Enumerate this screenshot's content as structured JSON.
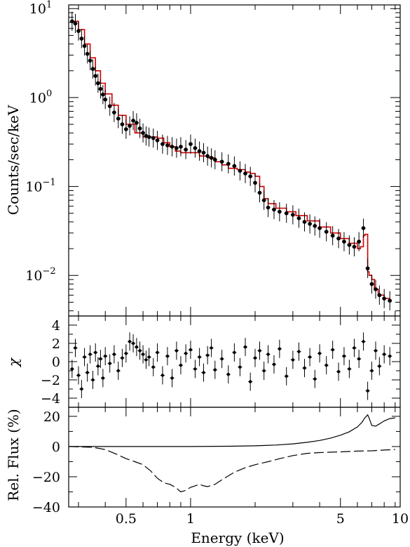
{
  "chart_data": [
    {
      "panel": "spectrum",
      "type": "scatter",
      "ylabel": "Counts/sec/keV",
      "xscale": "log",
      "yscale": "log",
      "xlim": [
        0.27,
        9.5
      ],
      "ylim": [
        0.0035,
        11
      ],
      "y_ticks": [
        {
          "base": "10",
          "exp": "1",
          "value": 10
        },
        {
          "base": "10",
          "exp": "0",
          "value": 1
        },
        {
          "base": "10",
          "exp": "−1",
          "value": 0.1
        },
        {
          "base": "10",
          "exp": "−2",
          "value": 0.01
        }
      ],
      "series": [
        {
          "role": "data",
          "color": "#000000",
          "x": [
            0.28,
            0.29,
            0.3,
            0.31,
            0.32,
            0.33,
            0.34,
            0.35,
            0.36,
            0.37,
            0.38,
            0.39,
            0.4,
            0.42,
            0.44,
            0.46,
            0.48,
            0.5,
            0.52,
            0.54,
            0.56,
            0.58,
            0.6,
            0.62,
            0.64,
            0.67,
            0.7,
            0.74,
            0.78,
            0.82,
            0.86,
            0.9,
            0.95,
            1.0,
            1.05,
            1.1,
            1.15,
            1.2,
            1.25,
            1.3,
            1.4,
            1.5,
            1.6,
            1.7,
            1.8,
            1.9,
            2.0,
            2.1,
            2.2,
            2.3,
            2.45,
            2.6,
            2.8,
            3.0,
            3.2,
            3.4,
            3.6,
            3.8,
            4.0,
            4.3,
            4.6,
            4.9,
            5.2,
            5.5,
            5.8,
            6.1,
            6.4,
            6.7,
            7.0,
            7.3,
            7.6,
            8.0,
            8.5
          ],
          "y": [
            7.2,
            6.8,
            5.6,
            4.6,
            3.8,
            3.1,
            2.6,
            2.1,
            1.75,
            1.45,
            1.25,
            1.08,
            0.95,
            0.8,
            0.68,
            0.58,
            0.5,
            0.44,
            0.48,
            0.55,
            0.52,
            0.45,
            0.4,
            0.37,
            0.36,
            0.35,
            0.33,
            0.3,
            0.29,
            0.28,
            0.27,
            0.28,
            0.26,
            0.3,
            0.27,
            0.25,
            0.24,
            0.22,
            0.21,
            0.2,
            0.19,
            0.18,
            0.17,
            0.15,
            0.14,
            0.13,
            0.11,
            0.085,
            0.07,
            0.058,
            0.055,
            0.052,
            0.05,
            0.048,
            0.044,
            0.04,
            0.038,
            0.036,
            0.034,
            0.031,
            0.028,
            0.026,
            0.024,
            0.022,
            0.021,
            0.024,
            0.034,
            0.012,
            0.008,
            0.007,
            0.006,
            0.0055,
            0.0052
          ]
        },
        {
          "role": "model",
          "color": "#cc0000",
          "x": [
            0.28,
            0.3,
            0.32,
            0.34,
            0.36,
            0.38,
            0.4,
            0.43,
            0.46,
            0.5,
            0.55,
            0.6,
            0.65,
            0.7,
            0.75,
            0.8,
            0.85,
            0.9,
            1.0,
            1.1,
            1.2,
            1.3,
            1.4,
            1.5,
            1.65,
            1.8,
            1.9,
            2.0,
            2.1,
            2.2,
            2.3,
            2.5,
            2.8,
            3.1,
            3.5,
            4.0,
            4.5,
            5.0,
            5.5,
            6.0,
            6.2,
            6.4,
            6.5,
            6.6,
            6.7,
            6.8,
            7.0,
            7.2,
            7.5,
            8.0,
            8.5
          ],
          "y": [
            7.2,
            5.8,
            4.0,
            2.8,
            2.0,
            1.45,
            1.1,
            0.82,
            0.63,
            0.5,
            0.4,
            0.36,
            0.36,
            0.35,
            0.31,
            0.28,
            0.25,
            0.24,
            0.24,
            0.22,
            0.21,
            0.19,
            0.175,
            0.16,
            0.155,
            0.145,
            0.14,
            0.13,
            0.1,
            0.073,
            0.064,
            0.057,
            0.052,
            0.047,
            0.041,
            0.035,
            0.03,
            0.026,
            0.023,
            0.02,
            0.021,
            0.028,
            0.029,
            0.029,
            0.011,
            0.01,
            0.009,
            0.007,
            0.006,
            0.0055,
            0.0055
          ]
        }
      ]
    },
    {
      "panel": "residuals",
      "type": "scatter",
      "ylabel": "χ",
      "xscale": "log",
      "ylim": [
        -5,
        5
      ],
      "y_ticks": [
        "4",
        "2",
        "0",
        "−2",
        "−4"
      ],
      "series": [
        {
          "role": "residuals",
          "color": "#000000",
          "x": [
            0.28,
            0.29,
            0.3,
            0.31,
            0.32,
            0.33,
            0.34,
            0.35,
            0.36,
            0.37,
            0.38,
            0.39,
            0.4,
            0.42,
            0.44,
            0.46,
            0.48,
            0.5,
            0.52,
            0.54,
            0.56,
            0.58,
            0.6,
            0.62,
            0.64,
            0.67,
            0.7,
            0.74,
            0.78,
            0.82,
            0.86,
            0.9,
            0.95,
            1.0,
            1.05,
            1.1,
            1.15,
            1.2,
            1.25,
            1.3,
            1.4,
            1.5,
            1.6,
            1.7,
            1.8,
            1.9,
            2.0,
            2.1,
            2.2,
            2.3,
            2.45,
            2.6,
            2.8,
            3.0,
            3.2,
            3.4,
            3.6,
            3.8,
            4.0,
            4.3,
            4.6,
            4.9,
            5.2,
            5.5,
            5.8,
            6.1,
            6.4,
            6.7,
            7.0,
            7.3,
            7.6,
            8.0,
            8.5
          ],
          "y": [
            -0.8,
            1.5,
            -1.5,
            -3.0,
            0.5,
            -1.2,
            0.8,
            -2.0,
            1.0,
            -0.5,
            0.3,
            -1.8,
            0.6,
            -0.2,
            0.8,
            -1.0,
            0.4,
            0.9,
            2.2,
            2.0,
            1.6,
            1.2,
            0.8,
            0.2,
            0.5,
            -0.6,
            1.0,
            -1.5,
            0.6,
            -1.8,
            1.2,
            -0.4,
            0.9,
            1.3,
            -0.8,
            0.5,
            -1.2,
            0.7,
            1.5,
            -0.9,
            0.3,
            -1.4,
            1.0,
            -0.6,
            1.6,
            -2.2,
            0.4,
            1.2,
            -1.0,
            0.8,
            -0.3,
            1.4,
            -1.6,
            0.2,
            1.1,
            -0.7,
            0.5,
            -1.9,
            0.9,
            -0.4,
            1.3,
            -1.1,
            0.6,
            -0.8,
            1.5,
            0.3,
            2.2,
            -3.2,
            -1.0,
            1.2,
            -0.5,
            0.8,
            0.6
          ]
        }
      ]
    },
    {
      "panel": "relative-flux",
      "type": "line",
      "xlabel": "Energy (keV)",
      "ylabel": "Rel. Flux (%)",
      "xscale": "log",
      "xlim": [
        0.27,
        9.5
      ],
      "ylim": [
        -40,
        26
      ],
      "x_ticks": [
        {
          "label": "0.5",
          "value": 0.5
        },
        {
          "label": "1",
          "value": 1
        },
        {
          "label": "5",
          "value": 5
        },
        {
          "label": "10",
          "value": 10
        }
      ],
      "y_ticks": [
        "20",
        "0",
        "−20",
        "−40"
      ],
      "series": [
        {
          "role": "solid",
          "color": "#000000",
          "x": [
            0.27,
            0.5,
            1.0,
            1.5,
            2.0,
            2.5,
            3.0,
            3.5,
            4.0,
            4.5,
            5.0,
            5.5,
            6.0,
            6.3,
            6.5,
            6.7,
            6.8,
            7.0,
            7.3,
            7.6,
            8.0,
            8.5,
            9.0
          ],
          "y": [
            0,
            0,
            0,
            0.2,
            0.5,
            1.0,
            1.8,
            2.8,
            4.0,
            5.6,
            7.5,
            9.8,
            13.0,
            16.0,
            19.0,
            21.0,
            19.0,
            14.0,
            13.5,
            15.0,
            17.0,
            18.5,
            19.0
          ]
        },
        {
          "role": "dashed",
          "color": "#000000",
          "x": [
            0.27,
            0.35,
            0.4,
            0.45,
            0.5,
            0.55,
            0.6,
            0.65,
            0.7,
            0.75,
            0.8,
            0.85,
            0.9,
            0.95,
            1.0,
            1.05,
            1.1,
            1.15,
            1.2,
            1.3,
            1.4,
            1.6,
            1.8,
            2.0,
            2.3,
            2.6,
            3.0,
            3.5,
            4.0,
            5.0,
            6.0,
            7.0,
            8.0,
            9.0
          ],
          "y": [
            0,
            -0.5,
            -2.0,
            -5.0,
            -8.0,
            -10.0,
            -12.0,
            -16.0,
            -21.0,
            -24.0,
            -25.0,
            -27.0,
            -30.0,
            -29.0,
            -27.0,
            -26.0,
            -25.0,
            -26.0,
            -26.5,
            -25.0,
            -22.0,
            -17.0,
            -14.0,
            -12.0,
            -10.0,
            -8.0,
            -6.0,
            -4.5,
            -4.0,
            -3.5,
            -3.0,
            -2.8,
            -2.3,
            -2.0
          ]
        }
      ]
    }
  ]
}
